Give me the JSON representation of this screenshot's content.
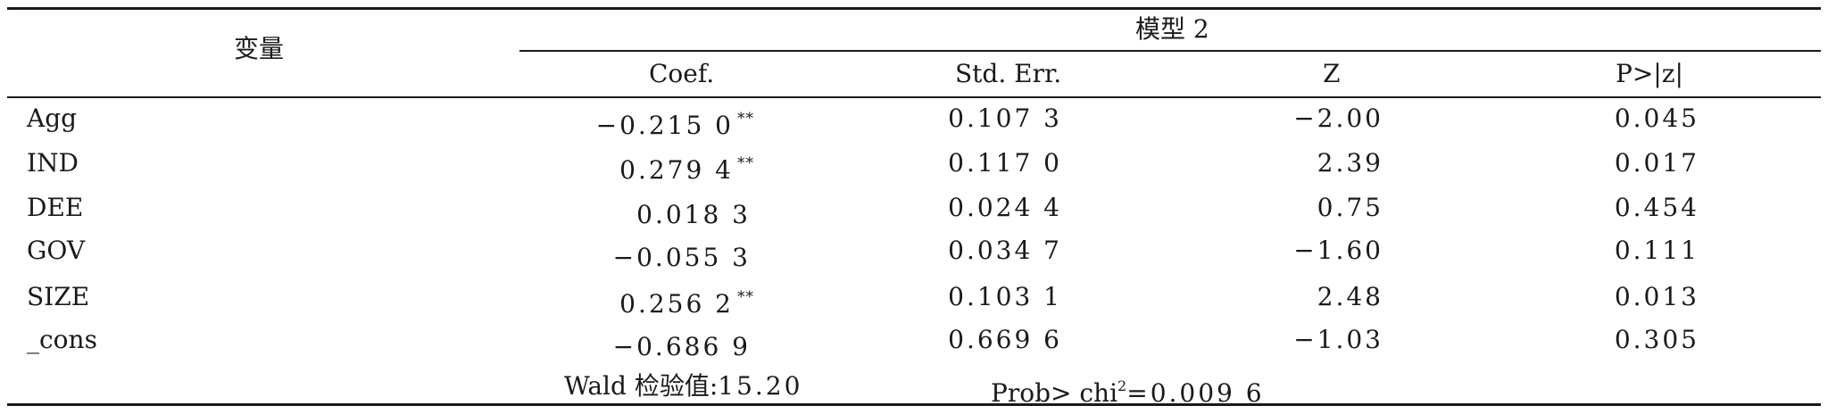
{
  "header": {
    "variable_label": "变量",
    "model_label": "模型 2",
    "columns": [
      "Coef.",
      "Std. Err.",
      "Z",
      "P>|z|"
    ]
  },
  "rows": [
    {
      "name": "Agg",
      "coef": "−0.215 0",
      "sig": "**",
      "se": "0.107 3",
      "z": "−2.00",
      "p": "0.045"
    },
    {
      "name": "IND",
      "coef": "0.279 4",
      "sig": "**",
      "se": "0.117 0",
      "z": "2.39",
      "p": "0.017"
    },
    {
      "name": "DEE",
      "coef": "0.018 3",
      "sig": "",
      "se": "0.024 4",
      "z": "0.75",
      "p": "0.454"
    },
    {
      "name": "GOV",
      "coef": "−0.055 3",
      "sig": "",
      "se": "0.034 7",
      "z": "−1.60",
      "p": "0.111"
    },
    {
      "name": "SIZE",
      "coef": "0.256 2",
      "sig": "**",
      "se": "0.103 1",
      "z": "2.48",
      "p": "0.013"
    },
    {
      "name": "_cons",
      "coef": "−0.686 9",
      "sig": "",
      "se": "0.669 6",
      "z": "−1.03",
      "p": "0.305"
    }
  ],
  "footer": {
    "wald_label": "Wald 检验值:",
    "wald_value": "15.20",
    "prob_label": "Prob> chi",
    "prob_sup": "2",
    "prob_value": "=0.009 6"
  }
}
